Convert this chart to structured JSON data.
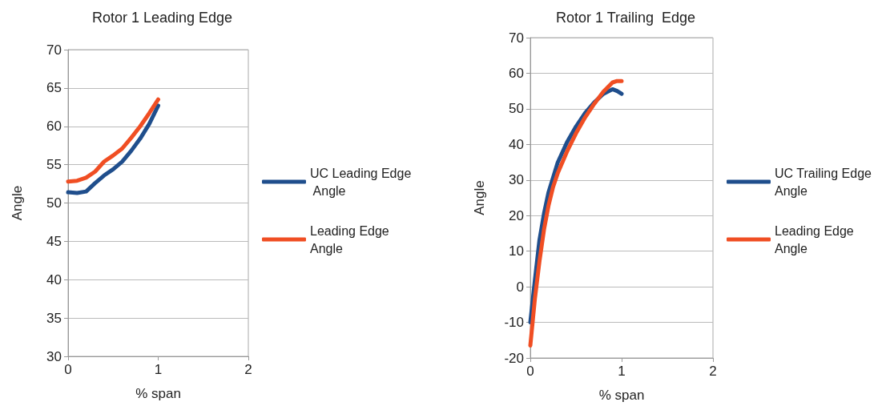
{
  "chart_data": [
    {
      "type": "line",
      "title": "Rotor 1 Leading Edge",
      "xlabel": "% span",
      "ylabel": "Angle",
      "xlim": [
        0,
        2
      ],
      "xticks": [
        0,
        1,
        2
      ],
      "ylim": [
        30,
        70
      ],
      "yticks": [
        30,
        35,
        40,
        45,
        50,
        55,
        60,
        65,
        70
      ],
      "grid": "y",
      "legend": "right",
      "marker": "none",
      "line_style": "solid",
      "series": [
        {
          "name": "UC Leading Edge Angle",
          "color": "#1f4e8c",
          "x": [
            0,
            0.1,
            0.2,
            0.3,
            0.4,
            0.5,
            0.6,
            0.7,
            0.8,
            0.9,
            1
          ],
          "values": [
            51.4,
            51.3,
            51.5,
            52.6,
            53.6,
            54.4,
            55.4,
            56.8,
            58.4,
            60.3,
            62.7
          ]
        },
        {
          "name": "Leading Edge Angle",
          "color": "#f04e23",
          "x": [
            0,
            0.1,
            0.2,
            0.3,
            0.4,
            0.5,
            0.6,
            0.7,
            0.8,
            0.9,
            1
          ],
          "values": [
            52.8,
            52.9,
            53.3,
            54.1,
            55.4,
            56.2,
            57.1,
            58.5,
            60,
            61.7,
            63.5
          ]
        }
      ]
    },
    {
      "type": "line",
      "title": "Rotor 1 Trailing  Edge",
      "xlabel": "% span",
      "ylabel": "Angle",
      "xlim": [
        0,
        2
      ],
      "xticks": [
        0,
        1,
        2
      ],
      "ylim": [
        -20,
        70
      ],
      "yticks": [
        -20,
        -10,
        0,
        10,
        20,
        30,
        40,
        50,
        60,
        70
      ],
      "grid": "y",
      "legend": "right",
      "marker": "none",
      "line_style": "solid",
      "series": [
        {
          "name": "UC Trailing Edge Angle",
          "color": "#1f4e8c",
          "x": [
            0,
            0.05,
            0.1,
            0.15,
            0.2,
            0.3,
            0.4,
            0.5,
            0.6,
            0.7,
            0.8,
            0.9,
            0.95,
            1
          ],
          "values": [
            -10,
            1.9,
            13.1,
            20.6,
            26.6,
            34.9,
            40.5,
            45,
            48.8,
            51.8,
            54.2,
            55.5,
            55,
            54.2
          ]
        },
        {
          "name": "Leading Edge Angle",
          "color": "#f04e23",
          "x": [
            0,
            0.05,
            0.1,
            0.15,
            0.2,
            0.25,
            0.3,
            0.4,
            0.5,
            0.6,
            0.7,
            0.8,
            0.9,
            0.95,
            1
          ],
          "values": [
            -16.5,
            -3.4,
            7.1,
            16.1,
            22.9,
            28.1,
            31.9,
            37.9,
            43.1,
            47.6,
            51.4,
            54.8,
            57.4,
            57.8,
            57.8
          ]
        }
      ]
    }
  ]
}
